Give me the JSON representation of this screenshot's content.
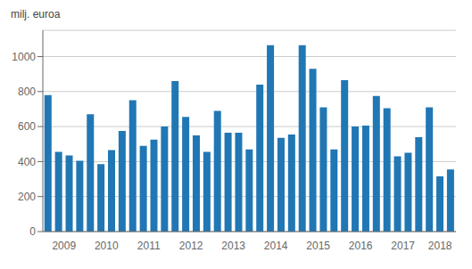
{
  "chart_data": {
    "type": "bar",
    "ylabel": "milj. euroa",
    "categories": [
      "2009",
      null,
      null,
      null,
      "2010",
      null,
      null,
      null,
      "2011",
      null,
      null,
      null,
      "2012",
      null,
      null,
      null,
      "2013",
      null,
      null,
      null,
      "2014",
      null,
      null,
      null,
      "2015",
      null,
      null,
      null,
      "2016",
      null,
      null,
      null,
      "2017",
      null,
      null,
      null,
      "2018",
      null,
      null
    ],
    "values": [
      780,
      455,
      435,
      405,
      670,
      385,
      465,
      575,
      750,
      490,
      525,
      600,
      860,
      655,
      550,
      455,
      690,
      565,
      565,
      470,
      840,
      1065,
      535,
      555,
      1065,
      930,
      710,
      470,
      865,
      600,
      605,
      775,
      705,
      430,
      450,
      540,
      710,
      315,
      355
    ],
    "color": "#2077b4",
    "ylim": [
      0,
      1150
    ],
    "yticks": [
      0,
      200,
      400,
      600,
      800,
      1000
    ],
    "grid": true
  }
}
